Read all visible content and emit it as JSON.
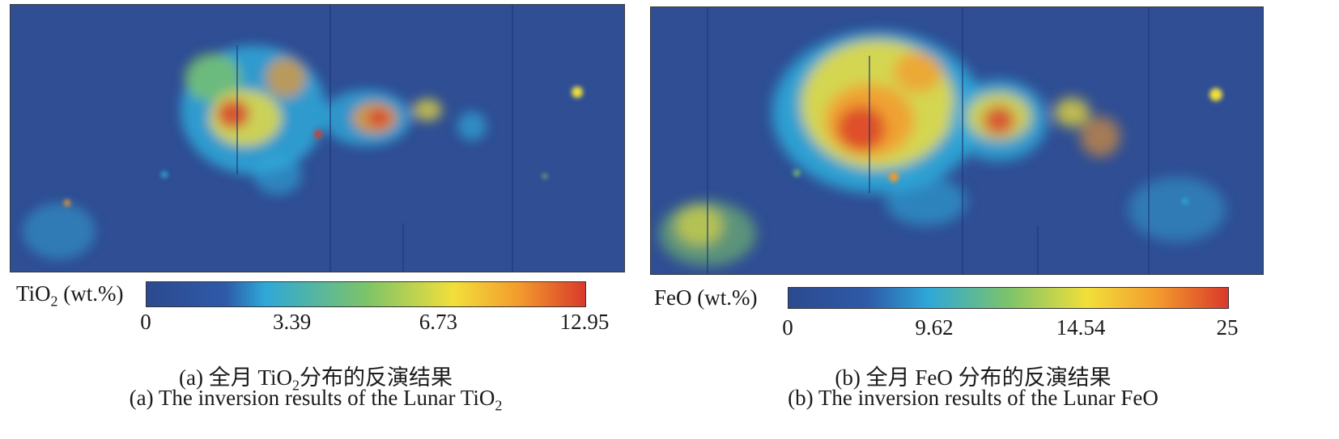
{
  "chart_data": [
    {
      "type": "heatmap",
      "title": "(a) 全月 TiO₂分布的反演结果",
      "subtitle": "(a) The inversion results of the Lunar TiO₂",
      "colorbar": {
        "label_main": "TiO",
        "label_sub": "2",
        "label_unit": " (wt.%)",
        "ticks": [
          {
            "value": 0,
            "label": "0"
          },
          {
            "value": 3.39,
            "label": "3.39"
          },
          {
            "value": 6.73,
            "label": "6.73"
          },
          {
            "value": 12.95,
            "label": "12.95"
          }
        ],
        "range": [
          0,
          12.95
        ],
        "colormap": "jet"
      },
      "caption_zh": {
        "pre": "(a) 全月 TiO",
        "sub": "2",
        "post": "分布的反演结果"
      },
      "caption_en": {
        "pre": "(a) The inversion results of the Lunar TiO",
        "sub": "2"
      }
    },
    {
      "type": "heatmap",
      "title": "(b) 全月 FeO 分布的反演结果",
      "subtitle": "(b) The inversion results of the Lunar FeO",
      "colorbar": {
        "label_main": "FeO",
        "label_unit": " (wt.%)",
        "ticks": [
          {
            "value": 0,
            "label": "0"
          },
          {
            "value": 9.62,
            "label": "9.62"
          },
          {
            "value": 14.54,
            "label": "14.54"
          },
          {
            "value": 25,
            "label": "25"
          }
        ],
        "range": [
          0,
          25
        ],
        "colormap": "jet"
      },
      "caption_zh": {
        "pre": "(b) 全月 FeO 分布的反演结果"
      },
      "caption_en": {
        "pre": "(b) The inversion results of the Lunar FeO"
      }
    }
  ],
  "colors": {
    "background": "#2f4e94",
    "low": "#2c4a8f",
    "cyan": "#2fa8d8",
    "green": "#7cc36a",
    "yellow": "#f2df3a",
    "orange": "#f39a2d",
    "red": "#d93a2b"
  }
}
